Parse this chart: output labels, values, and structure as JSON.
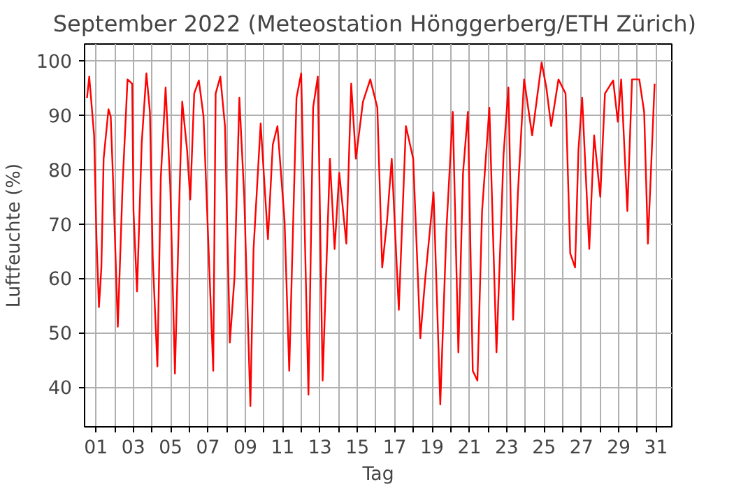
{
  "chart_data": {
    "type": "line",
    "title": "September 2022  (Meteostation Hönggerberg/ETH Zürich)",
    "xlabel": "Tag",
    "ylabel": "Luftfeuchte (%)",
    "x": [
      0.52,
      0.64,
      0.9,
      1.03,
      1.16,
      1.29,
      1.41,
      1.67,
      1.79,
      1.92,
      2.17,
      2.43,
      2.69,
      2.94,
      3.01,
      3.2,
      3.45,
      3.7,
      3.89,
      4.04,
      4.29,
      4.47,
      4.73,
      4.98,
      5.23,
      5.49,
      5.62,
      5.88,
      6.05,
      6.26,
      6.51,
      6.76,
      7.28,
      7.41,
      7.66,
      7.91,
      8.17,
      8.42,
      8.68,
      8.94,
      9.27,
      9.44,
      9.82,
      10.21,
      10.47,
      10.72,
      11.1,
      11.35,
      11.74,
      11.99,
      12.38,
      12.63,
      12.88,
      13.14,
      13.53,
      13.78,
      14.03,
      14.41,
      14.67,
      14.92,
      15.3,
      15.69,
      16.07,
      16.33,
      16.59,
      16.84,
      17.22,
      17.6,
      17.99,
      18.37,
      18.62,
      19.08,
      19.44,
      19.77,
      20.11,
      20.41,
      20.66,
      20.92,
      21.18,
      21.43,
      21.68,
      22.07,
      22.45,
      22.83,
      23.09,
      23.34,
      23.6,
      23.93,
      24.36,
      24.87,
      25.12,
      25.38,
      25.77,
      26.15,
      26.4,
      26.66,
      26.84,
      27.04,
      27.42,
      27.68,
      28.01,
      28.26,
      28.7,
      28.95,
      29.13,
      29.46,
      29.71,
      30.1,
      30.36,
      30.56,
      30.74,
      30.92
    ],
    "series": [
      {
        "color": "#ff0000",
        "values": [
          93.2,
          97.1,
          86.3,
          67.2,
          54.7,
          62,
          82,
          91.1,
          89.8,
          77.6,
          51.1,
          77.6,
          96.6,
          95.8,
          72.4,
          57.6,
          84.9,
          97.7,
          90.6,
          63.8,
          43.8,
          78.4,
          95.1,
          76.8,
          42.5,
          77.6,
          92.5,
          83.6,
          74.5,
          94,
          96.4,
          89.8,
          43,
          94,
          97.1,
          88,
          48.2,
          60.2,
          93.2,
          75,
          36.5,
          65.4,
          88.5,
          67.2,
          84.6,
          88,
          70.6,
          43,
          93.2,
          97.7,
          38.6,
          91.4,
          97.1,
          41.2,
          82,
          65.4,
          79.4,
          66.4,
          95.8,
          82,
          92.5,
          96.6,
          91.4,
          62,
          70.6,
          82,
          54.2,
          88,
          82,
          49,
          59.4,
          75.8,
          36.8,
          69,
          90.6,
          46.4,
          79.4,
          90.6,
          43,
          41.2,
          72.4,
          91.4,
          46.4,
          82.8,
          95.1,
          52.4,
          75.8,
          96.6,
          86.3,
          99.7,
          95.1,
          88,
          96.6,
          94,
          64.6,
          62,
          83.6,
          93.2,
          65.4,
          86.3,
          75,
          94,
          96.4,
          88.8,
          96.6,
          72.4,
          96.6,
          96.6,
          90.6,
          66.4,
          81,
          95.8
        ]
      }
    ],
    "xlim": [
      0.39,
      31.84
    ],
    "ylim": [
      32.7,
      103.1
    ],
    "xticks": [
      {
        "value": 1,
        "label": "01"
      },
      {
        "value": 2,
        "label": null
      },
      {
        "value": 3,
        "label": "03"
      },
      {
        "value": 4,
        "label": null
      },
      {
        "value": 5,
        "label": "05"
      },
      {
        "value": 6,
        "label": null
      },
      {
        "value": 7,
        "label": "07"
      },
      {
        "value": 8,
        "label": null
      },
      {
        "value": 9,
        "label": "09"
      },
      {
        "value": 10,
        "label": null
      },
      {
        "value": 11,
        "label": "11"
      },
      {
        "value": 12,
        "label": null
      },
      {
        "value": 13,
        "label": "13"
      },
      {
        "value": 14,
        "label": null
      },
      {
        "value": 15,
        "label": "15"
      },
      {
        "value": 16,
        "label": null
      },
      {
        "value": 17,
        "label": "17"
      },
      {
        "value": 18,
        "label": null
      },
      {
        "value": 19,
        "label": "19"
      },
      {
        "value": 20,
        "label": null
      },
      {
        "value": 21,
        "label": "21"
      },
      {
        "value": 22,
        "label": null
      },
      {
        "value": 23,
        "label": "23"
      },
      {
        "value": 24,
        "label": null
      },
      {
        "value": 25,
        "label": "25"
      },
      {
        "value": 26,
        "label": null
      },
      {
        "value": 27,
        "label": "27"
      },
      {
        "value": 28,
        "label": null
      },
      {
        "value": 29,
        "label": "29"
      },
      {
        "value": 30,
        "label": null
      },
      {
        "value": 31,
        "label": "31"
      }
    ],
    "yticks": [
      40,
      50,
      60,
      70,
      80,
      90,
      100
    ],
    "grid": true
  }
}
